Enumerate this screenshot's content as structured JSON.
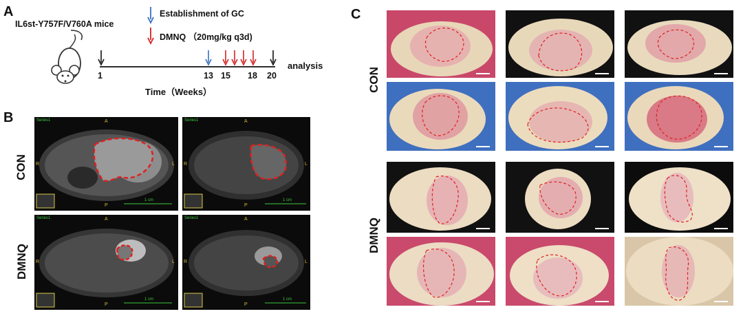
{
  "panelA": {
    "letter": "A",
    "mouse_label": "IL6st-Y757F/V760A mice",
    "legend_gc": "Establishment of GC",
    "legend_dmnq": "DMNQ （20mg/kg q3d)",
    "legend_gc_color": "#3b6fc4",
    "legend_dmnq_color": "#d62222",
    "ticks": [
      "1",
      "13",
      "15",
      "18",
      "20"
    ],
    "end_label": "analysis",
    "axis_label": "Time（Weeks）"
  },
  "panelB": {
    "letter": "B",
    "row_labels": [
      "CON",
      "DMNQ"
    ],
    "orientation": {
      "top": "A",
      "bottom": "P",
      "left": "R",
      "right": "L"
    },
    "series_label": "Series1",
    "scale_text": "1 cm"
  },
  "panelC": {
    "letter": "C",
    "row_labels": [
      "CON",
      "DMNQ"
    ]
  },
  "colors": {
    "tumor_outline": "#e02020",
    "mri_text_orient": "#d8b838",
    "mri_text_series": "#3cc83c",
    "scale_bar": "#3cc83c"
  }
}
